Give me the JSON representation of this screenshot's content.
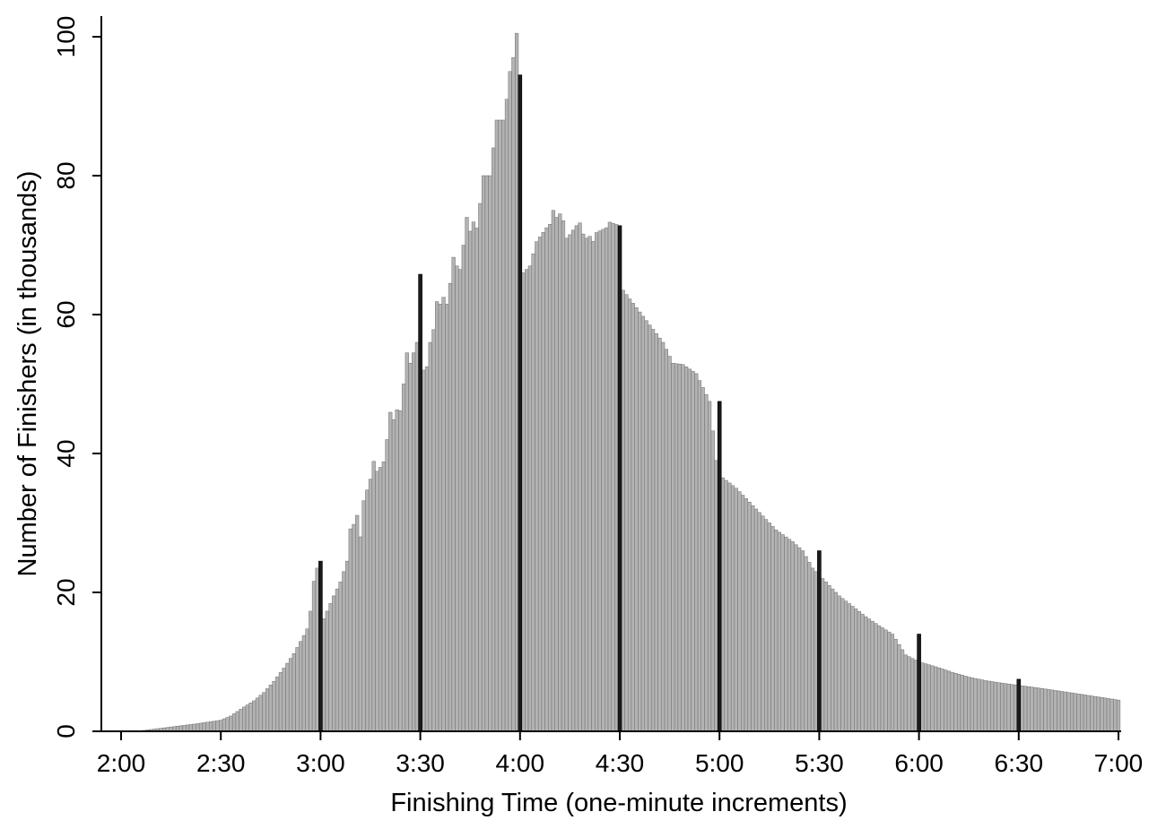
{
  "chart_data": {
    "type": "bar",
    "xlabel": "Finishing Time (one-minute increments)",
    "ylabel": "Number of Finishers (in thousands)",
    "xlim_minutes": [
      120,
      420
    ],
    "ylim": [
      0,
      100
    ],
    "yticks": [
      0,
      20,
      40,
      60,
      80,
      100
    ],
    "xticks": [
      "2:00",
      "2:30",
      "3:00",
      "3:30",
      "4:00",
      "4:30",
      "5:00",
      "5:30",
      "6:00",
      "6:30",
      "7:00"
    ],
    "bar_color": "#b3b3b3",
    "highlight_color": "#1a1a1a",
    "grid": false,
    "legend": "none",
    "anchors": [
      [
        120,
        0
      ],
      [
        125,
        0
      ],
      [
        128,
        0.2
      ],
      [
        133,
        0.5
      ],
      [
        138,
        0.8
      ],
      [
        143,
        1.1
      ],
      [
        150,
        1.6
      ],
      [
        153,
        2.2
      ],
      [
        157,
        3.5
      ],
      [
        160,
        4.4
      ],
      [
        163,
        5.6
      ],
      [
        166,
        7.2
      ],
      [
        169,
        9.1
      ],
      [
        172,
        11.2
      ],
      [
        175,
        13.8
      ],
      [
        177,
        17.3
      ],
      [
        179,
        23.5
      ],
      [
        181,
        16.2
      ],
      [
        184,
        19.5
      ],
      [
        186,
        21.5
      ],
      [
        188,
        24.5
      ],
      [
        190,
        29.8
      ],
      [
        192,
        28.0
      ],
      [
        193,
        33.2
      ],
      [
        195,
        36.3
      ],
      [
        198,
        38.0
      ],
      [
        200,
        42.0
      ],
      [
        203,
        46.3
      ],
      [
        205,
        50.0
      ],
      [
        207,
        53.0
      ],
      [
        209,
        56.0
      ],
      [
        210,
        65.8
      ],
      [
        211,
        52.0
      ],
      [
        213,
        56.0
      ],
      [
        216,
        61.5
      ],
      [
        219,
        64.5
      ],
      [
        221,
        67.0
      ],
      [
        223,
        70.0
      ],
      [
        225,
        72.0
      ],
      [
        228,
        76.0
      ],
      [
        230,
        80.0
      ],
      [
        232,
        84.0
      ],
      [
        234,
        88.0
      ],
      [
        236,
        91.0
      ],
      [
        237,
        95.0
      ],
      [
        238,
        97.0
      ],
      [
        239,
        100.5
      ],
      [
        240,
        94.5
      ],
      [
        241,
        66.0
      ],
      [
        243,
        67.0
      ],
      [
        245,
        70.5
      ],
      [
        248,
        72.5
      ],
      [
        252,
        74.5
      ],
      [
        255,
        71.5
      ],
      [
        257,
        72.8
      ],
      [
        260,
        71.0
      ],
      [
        263,
        71.8
      ],
      [
        266,
        72.5
      ],
      [
        267,
        73.3
      ],
      [
        270,
        72.8
      ],
      [
        271,
        63.5
      ],
      [
        275,
        61.0
      ],
      [
        279,
        58.5
      ],
      [
        283,
        56.0
      ],
      [
        286,
        53.0
      ],
      [
        289,
        52.8
      ],
      [
        293,
        51.5
      ],
      [
        297,
        47.5
      ],
      [
        299,
        39.0
      ],
      [
        301,
        36.5
      ],
      [
        305,
        35.0
      ],
      [
        309,
        33.0
      ],
      [
        313,
        31.0
      ],
      [
        317,
        29.0
      ],
      [
        322,
        27.3
      ],
      [
        325,
        26.0
      ],
      [
        328,
        23.5
      ],
      [
        332,
        21.5
      ],
      [
        336,
        19.5
      ],
      [
        340,
        18.0
      ],
      [
        344,
        16.5
      ],
      [
        348,
        15.2
      ],
      [
        352,
        14.0
      ],
      [
        356,
        11.0
      ],
      [
        360,
        10.0
      ],
      [
        365,
        9.3
      ],
      [
        370,
        8.5
      ],
      [
        375,
        7.8
      ],
      [
        380,
        7.3
      ],
      [
        387,
        6.8
      ],
      [
        395,
        6.3
      ],
      [
        405,
        5.6
      ],
      [
        420,
        4.5
      ]
    ],
    "highlights": [
      {
        "minute": 180,
        "value": 24.5
      },
      {
        "minute": 210,
        "value": 65.8
      },
      {
        "minute": 240,
        "value": 94.5
      },
      {
        "minute": 270,
        "value": 72.8
      },
      {
        "minute": 300,
        "value": 47.5
      },
      {
        "minute": 330,
        "value": 26.0
      },
      {
        "minute": 360,
        "value": 14.0
      },
      {
        "minute": 390,
        "value": 7.5
      }
    ],
    "wiggles": [
      {
        "minute": 176,
        "delta": -0.8
      },
      {
        "minute": 178,
        "delta": 1.2
      },
      {
        "minute": 189,
        "delta": 2.0
      },
      {
        "minute": 191,
        "delta": 2.2
      },
      {
        "minute": 196,
        "delta": 2.0
      },
      {
        "minute": 199,
        "delta": -1.2
      },
      {
        "minute": 201,
        "delta": 2.5
      },
      {
        "minute": 204,
        "delta": -2.0
      },
      {
        "minute": 206,
        "delta": 3.0
      },
      {
        "minute": 212,
        "delta": -1.5
      },
      {
        "minute": 215,
        "delta": 2.2
      },
      {
        "minute": 218,
        "delta": -2.0
      },
      {
        "minute": 220,
        "delta": 2.5
      },
      {
        "minute": 222,
        "delta": -2.0
      },
      {
        "minute": 224,
        "delta": 3.0
      },
      {
        "minute": 227,
        "delta": -2.2
      },
      {
        "minute": 229,
        "delta": 2.0
      },
      {
        "minute": 231,
        "delta": -2.0
      },
      {
        "minute": 233,
        "delta": 2.0
      },
      {
        "minute": 235,
        "delta": -1.5
      },
      {
        "minute": 250,
        "delta": 1.5
      },
      {
        "minute": 254,
        "delta": -1.5
      },
      {
        "minute": 258,
        "delta": 1.0
      },
      {
        "minute": 262,
        "delta": -1.0
      }
    ]
  }
}
